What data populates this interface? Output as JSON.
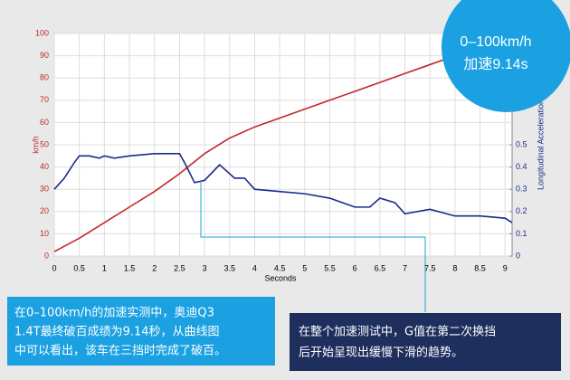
{
  "chart_data": {
    "type": "line",
    "x_label": "Seconds",
    "y_label": "km/h",
    "y2_label": "Longitudinal Acceleration",
    "xlim": [
      0,
      9.14
    ],
    "xticks": [
      0,
      0.5,
      1,
      1.5,
      2,
      2.5,
      3,
      3.5,
      4,
      4.5,
      5,
      5.5,
      6,
      6.5,
      7,
      7.5,
      8,
      8.5,
      9
    ],
    "ylim": [
      0,
      100
    ],
    "yticks": [
      0,
      10,
      20,
      30,
      40,
      50,
      60,
      70,
      80,
      90,
      100
    ],
    "y2lim": [
      0,
      1
    ],
    "y2ticks": [
      0,
      0.1,
      0.2,
      0.3,
      0.4,
      0.5
    ],
    "grid": true,
    "series": [
      {
        "name": "km/h",
        "color": "#c0282d",
        "x": [
          0,
          0.5,
          1,
          1.5,
          2,
          2.5,
          3,
          3.5,
          4,
          4.5,
          5,
          5.5,
          6,
          6.5,
          7,
          7.5,
          8,
          8.5,
          9,
          9.14
        ],
        "values": [
          2,
          8,
          15,
          22,
          29,
          37,
          46,
          53,
          58,
          62,
          66,
          70,
          74,
          78,
          82,
          86,
          90,
          94,
          98,
          100
        ]
      },
      {
        "name": "Longitudinal Acceleration",
        "color": "#1c2a8c",
        "axis": "y2",
        "x": [
          0,
          0.2,
          0.4,
          0.5,
          0.7,
          0.9,
          1.0,
          1.2,
          1.5,
          2,
          2.5,
          2.6,
          2.8,
          3.0,
          3.3,
          3.6,
          3.8,
          4,
          4.5,
          5,
          5.5,
          6,
          6.3,
          6.5,
          6.8,
          7,
          7.5,
          8,
          8.5,
          9,
          9.14
        ],
        "values": [
          0.3,
          0.35,
          0.42,
          0.45,
          0.45,
          0.44,
          0.45,
          0.44,
          0.45,
          0.46,
          0.46,
          0.42,
          0.33,
          0.34,
          0.41,
          0.35,
          0.35,
          0.3,
          0.29,
          0.28,
          0.26,
          0.22,
          0.22,
          0.26,
          0.24,
          0.19,
          0.21,
          0.18,
          0.18,
          0.17,
          0.15
        ]
      }
    ],
    "badge": [
      "0–100km/h",
      "加速9.14s"
    ],
    "annotations": [
      [
        "在0–100km/h的加速实测中，奥迪Q3",
        "1.4T最终破百成绩为9.14秒，从曲线图",
        "中可以看出，该车在三挡时完成了破百。"
      ],
      [
        "在整个加速测试中，G值在第二次换挡",
        "后开始呈现出缓慢下滑的趋势。"
      ]
    ]
  }
}
